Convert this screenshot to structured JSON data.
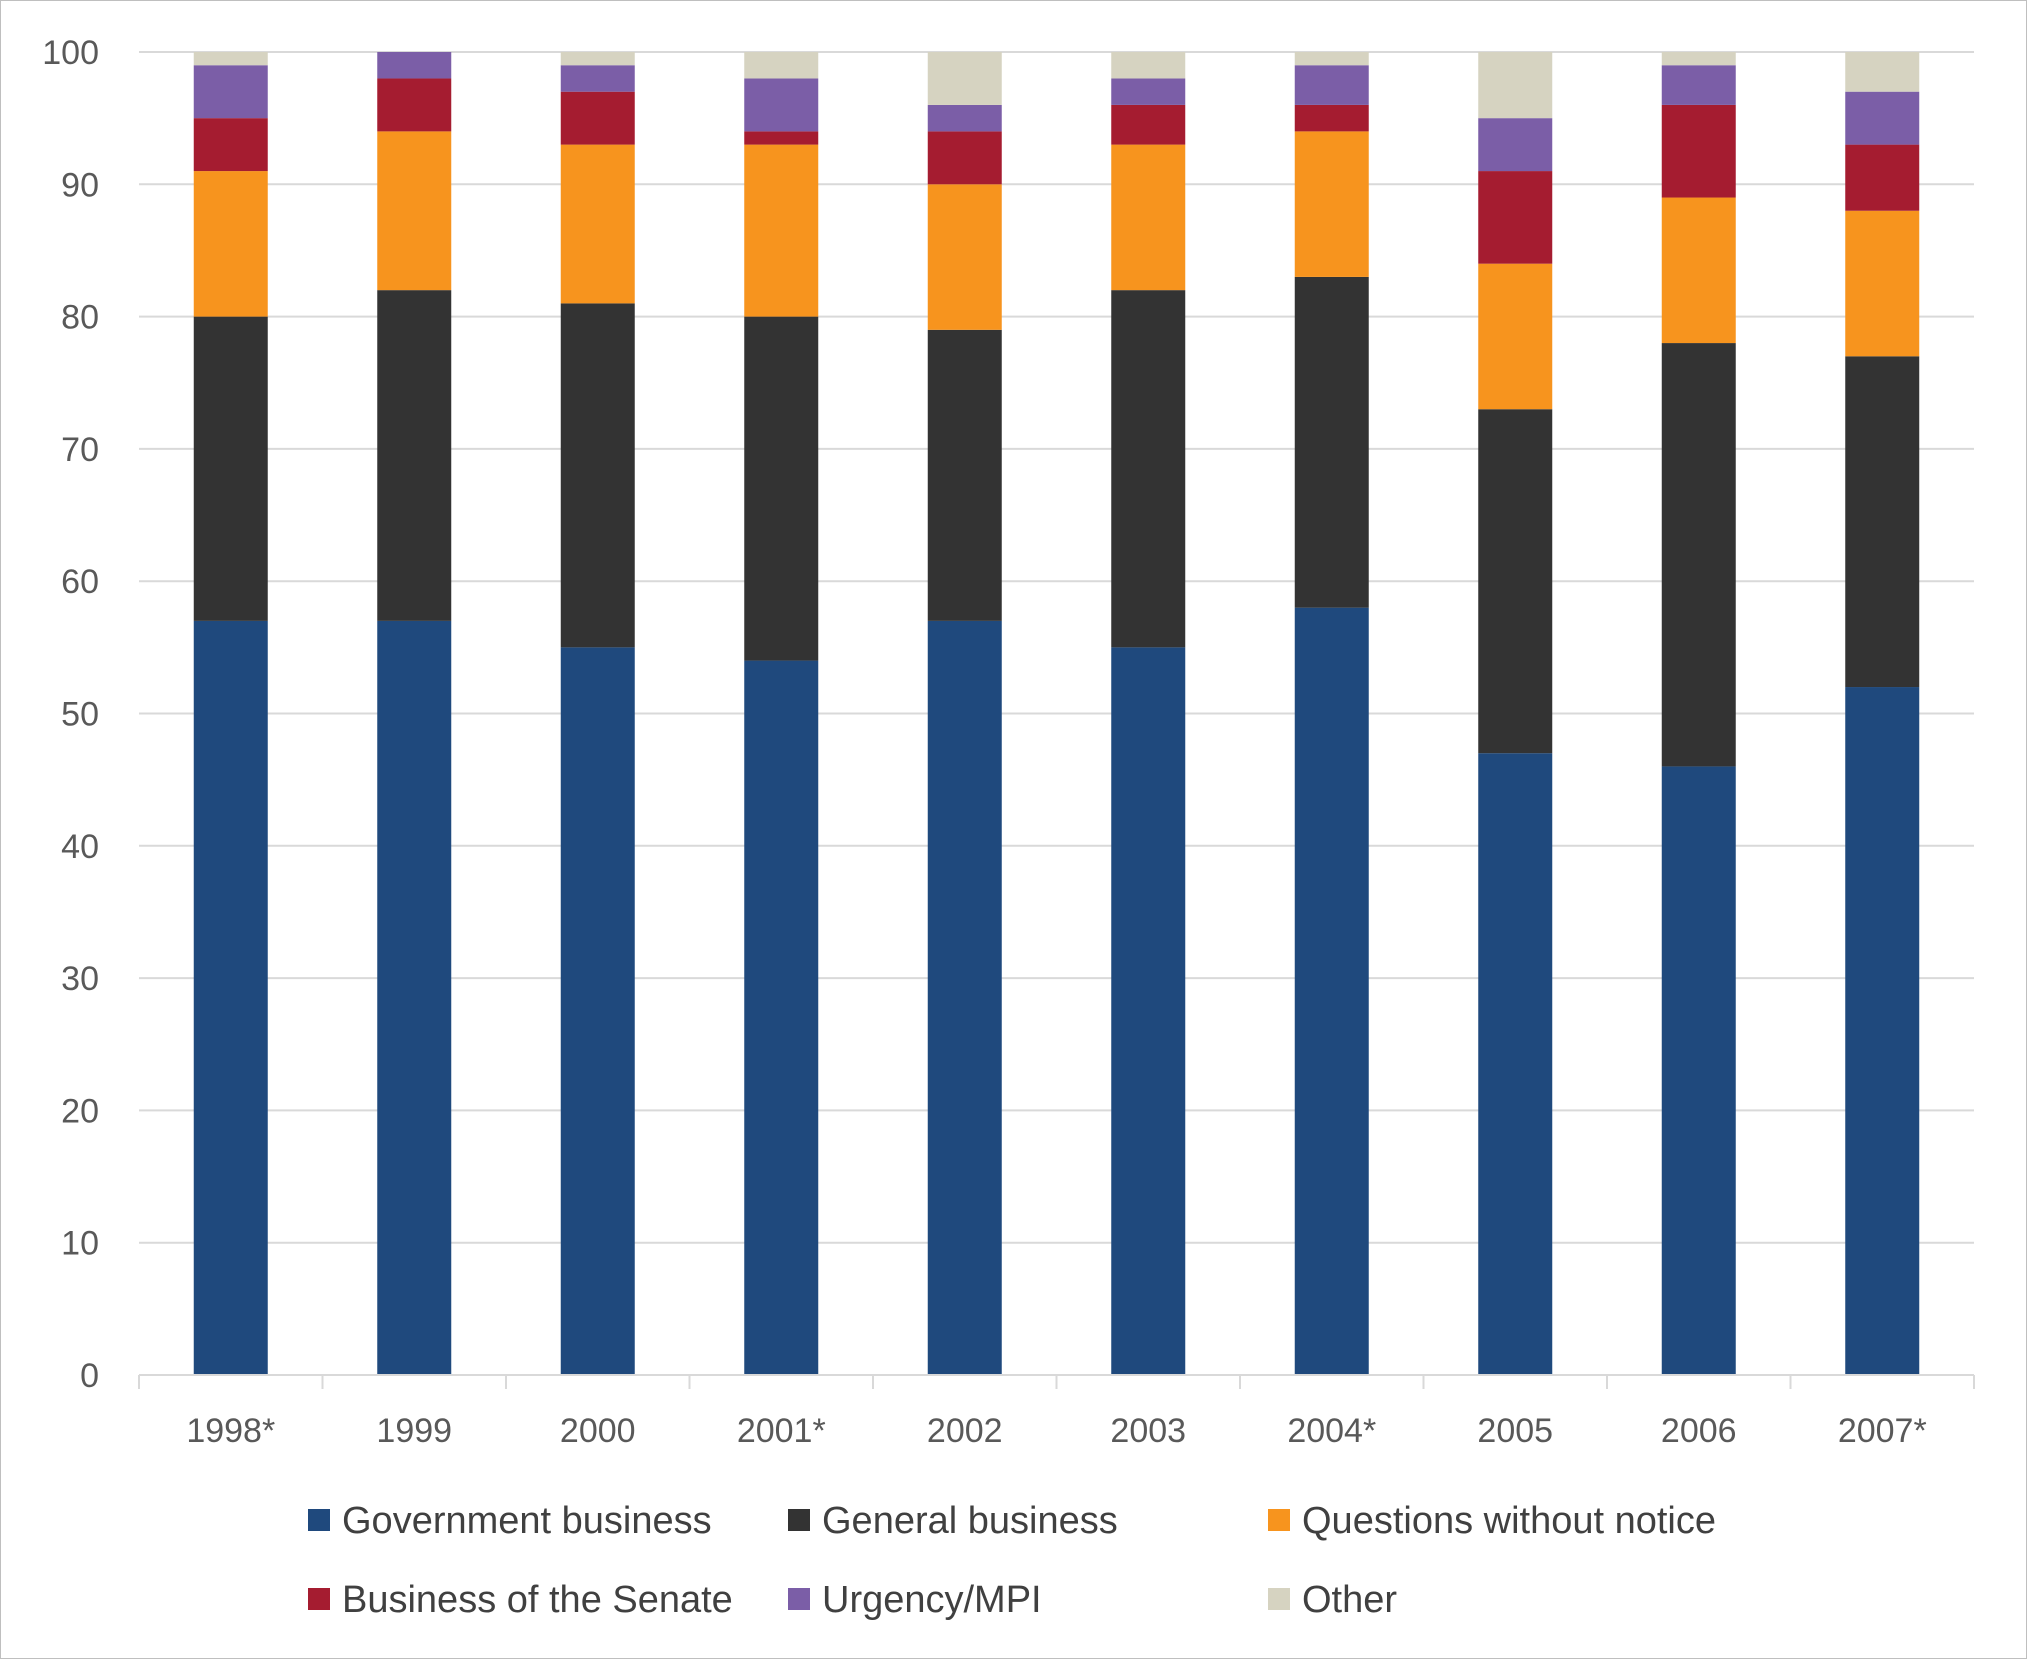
{
  "chart_data": {
    "type": "bar",
    "stacked": true,
    "categories": [
      "1998*",
      "1999",
      "2000",
      "2001*",
      "2002",
      "2003",
      "2004*",
      "2005",
      "2006",
      "2007*"
    ],
    "series": [
      {
        "name": "Government business",
        "color": "#1F497D",
        "values": [
          57,
          57,
          55,
          54,
          57,
          55,
          58,
          47,
          46,
          52
        ]
      },
      {
        "name": "General business",
        "color": "#333333",
        "values": [
          23,
          25,
          26,
          26,
          22,
          27,
          25,
          26,
          32,
          25
        ]
      },
      {
        "name": "Questions without notice",
        "color": "#F7941E",
        "values": [
          11,
          12,
          12,
          13,
          11,
          11,
          11,
          11,
          11,
          11
        ]
      },
      {
        "name": "Business of the Senate",
        "color": "#A51C30",
        "values": [
          4,
          4,
          4,
          1,
          4,
          3,
          2,
          7,
          7,
          5
        ]
      },
      {
        "name": "Urgency/MPI",
        "color": "#7B5EA7",
        "values": [
          4,
          2,
          2,
          4,
          2,
          2,
          3,
          4,
          3,
          4
        ]
      },
      {
        "name": "Other",
        "color": "#D6D3C1",
        "values": [
          1,
          0,
          1,
          2,
          4,
          2,
          1,
          5,
          1,
          3
        ]
      }
    ],
    "yticks": [
      "0",
      "10",
      "20",
      "30",
      "40",
      "50",
      "60",
      "70",
      "80",
      "90",
      "100"
    ],
    "ylim": [
      0,
      100
    ],
    "grid": true,
    "legend_position": "bottom",
    "title": "",
    "xlabel": "",
    "ylabel": ""
  }
}
